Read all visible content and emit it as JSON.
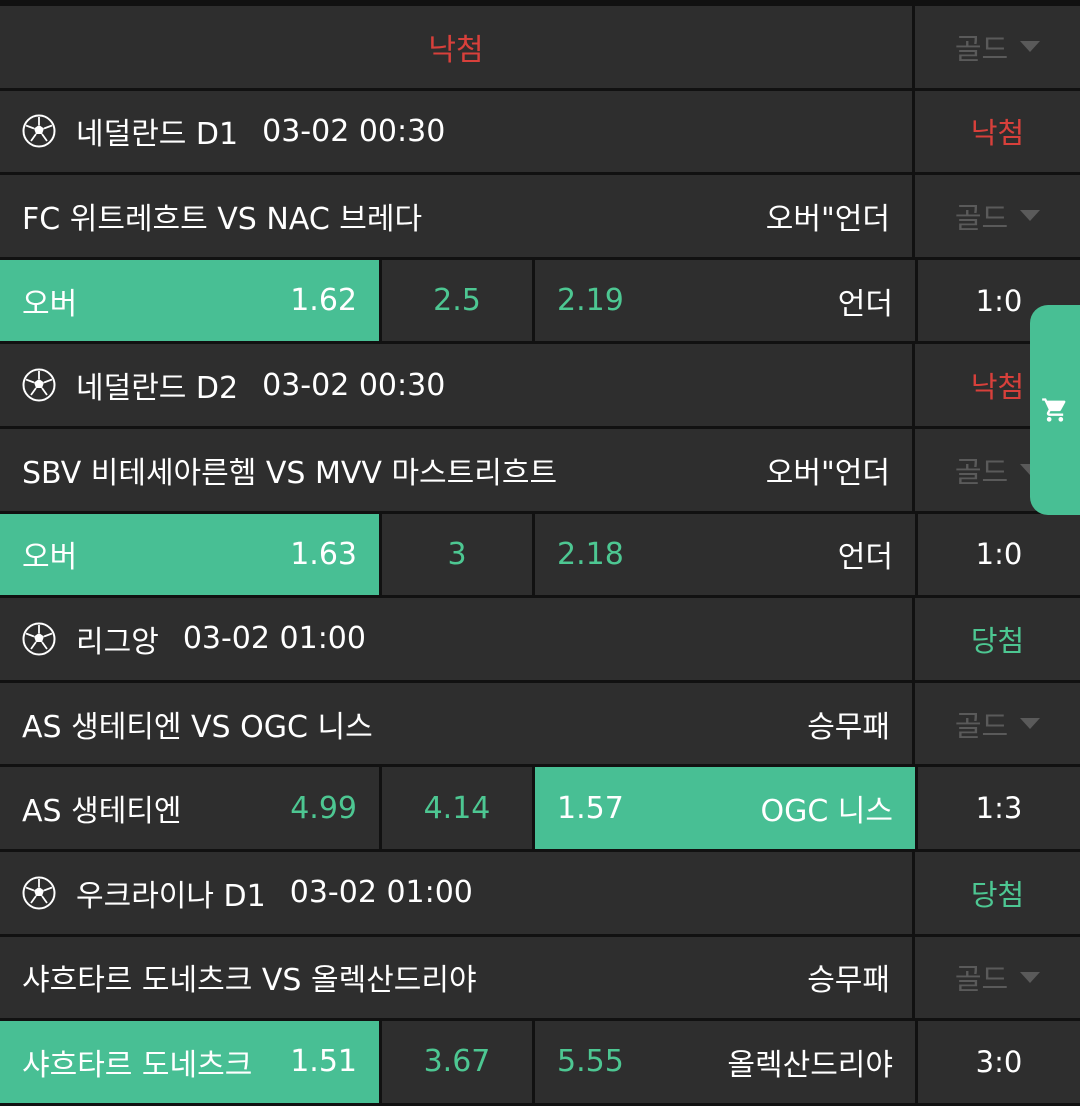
{
  "top_row": {
    "result": "낙첨",
    "result_color": "#d8403b",
    "gold_label": "골드"
  },
  "colors": {
    "accent": "#48bf94",
    "lose": "#d8403b",
    "win": "#4dc792",
    "background": "#2e2e2e"
  },
  "games": [
    {
      "sport_icon": "soccer-ball-icon",
      "league": "네덜란드 D1",
      "datetime": "03-02 00:30",
      "result": "낙첨",
      "result_type": "lose",
      "match": "FC 위트레흐트 VS NAC 브레다",
      "bet_type": "오버\"언더",
      "gold_label": "골드",
      "home_label": "오버",
      "home_odds": "1.62",
      "mid": "2.5",
      "away_odds": "2.19",
      "away_label": "언더",
      "score": "1:0",
      "selected": "home"
    },
    {
      "sport_icon": "soccer-ball-icon",
      "league": "네덜란드 D2",
      "datetime": "03-02 00:30",
      "result": "낙첨",
      "result_type": "lose",
      "match": "SBV 비테세아른헴 VS MVV 마스트리흐트",
      "bet_type": "오버\"언더",
      "gold_label": "골드",
      "home_label": "오버",
      "home_odds": "1.63",
      "mid": "3",
      "away_odds": "2.18",
      "away_label": "언더",
      "score": "1:0",
      "selected": "home"
    },
    {
      "sport_icon": "soccer-ball-icon",
      "league": "리그앙",
      "datetime": "03-02 01:00",
      "result": "당첨",
      "result_type": "win",
      "match": "AS 생테티엔 VS OGC 니스",
      "bet_type": "승무패",
      "gold_label": "골드",
      "home_label": "AS 생테티엔",
      "home_odds": "4.99",
      "mid": "4.14",
      "away_odds": "1.57",
      "away_label": "OGC 니스",
      "score": "1:3",
      "selected": "away"
    },
    {
      "sport_icon": "soccer-ball-icon",
      "league": "우크라이나 D1",
      "datetime": "03-02 01:00",
      "result": "당첨",
      "result_type": "win",
      "match": "샤흐타르 도네츠크 VS 올렉산드리야",
      "bet_type": "승무패",
      "gold_label": "골드",
      "home_label": "샤흐타르 도네츠크",
      "home_odds": "1.51",
      "mid": "3.67",
      "away_odds": "5.55",
      "away_label": "올렉산드리야",
      "score": "3:0",
      "selected": "home"
    }
  ],
  "cart_button": {
    "icon": "cart-icon"
  }
}
